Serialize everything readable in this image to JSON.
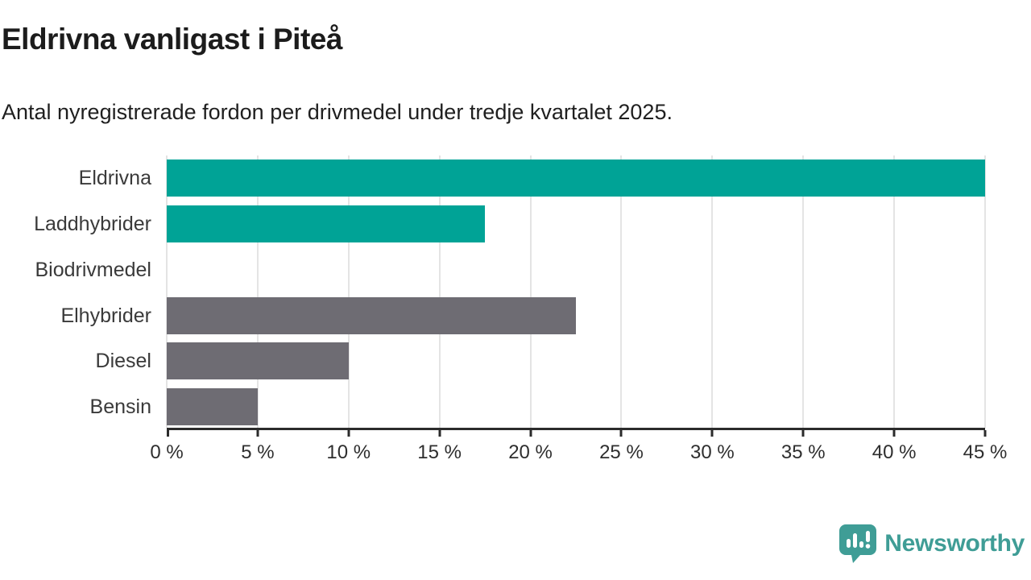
{
  "title": "Eldrivna vanligast i Piteå",
  "subtitle": "Antal nyregistrerade fordon per drivmedel under tredje kvartalet 2025.",
  "chart_data": {
    "type": "bar",
    "orientation": "horizontal",
    "title": "Eldrivna vanligast i Piteå",
    "subtitle": "Antal nyregistrerade fordon per drivmedel under tredje kvartalet 2025.",
    "categories": [
      "Eldrivna",
      "Laddhybrider",
      "Biodrivmedel",
      "Elhybrider",
      "Diesel",
      "Bensin"
    ],
    "values": [
      45,
      17.5,
      0,
      22.5,
      10,
      5
    ],
    "unit": "%",
    "xlim": [
      0,
      45
    ],
    "x_ticks": [
      0,
      5,
      10,
      15,
      20,
      25,
      30,
      35,
      40,
      45
    ],
    "x_tick_labels": [
      "0 %",
      "5 %",
      "10 %",
      "15 %",
      "20 %",
      "25 %",
      "30 %",
      "35 %",
      "40 %",
      "45 %"
    ],
    "bar_colors": [
      "#00a396",
      "#00a396",
      "#6e6c73",
      "#6e6c73",
      "#6e6c73",
      "#6e6c73"
    ],
    "grid": true,
    "gridline_color": "#e4e4e4",
    "axis_color": "#2b2b2b",
    "legend": "none"
  },
  "colors": {
    "accent_teal": "#00a396",
    "neutral_gray": "#6e6c73",
    "logo_teal": "#3f9d96",
    "text_dark": "#1c1c1c"
  },
  "logo": {
    "text": "Newsworthy"
  }
}
